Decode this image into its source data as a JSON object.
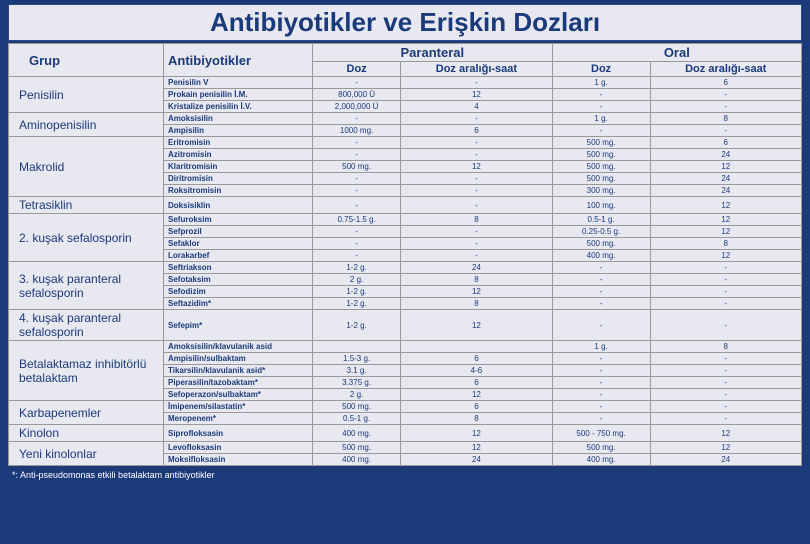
{
  "title": "Antibiyotikler ve Erişkin Dozları",
  "headers": {
    "group": "Grup",
    "antibiotics": "Antibiyotikler",
    "parenteral": "Paranteral",
    "oral": "Oral",
    "dose": "Doz",
    "interval": "Doz aralığı-saat"
  },
  "footnote": "*: Anti-pseudomonas etkili betalaktam antibiyotikler",
  "colors": {
    "background": "#1a3a7a",
    "cell_bg": "#e8e8f0",
    "text": "#1a3a7a",
    "footnote": "#ffffff"
  },
  "groups": [
    {
      "name": "Penisilin",
      "rows": [
        {
          "a": "Penisilin V",
          "pd": "-",
          "pi": "-",
          "od": "1 g.",
          "oi": "6"
        },
        {
          "a": "Prokain penisilin İ.M.",
          "pd": "800,000 Ü",
          "pi": "12",
          "od": "-",
          "oi": "-"
        },
        {
          "a": "Kristalize penisilin İ.V.",
          "pd": "2,000,000 Ü",
          "pi": "4",
          "od": "-",
          "oi": "-"
        }
      ]
    },
    {
      "name": "Aminopenisilin",
      "rows": [
        {
          "a": "Amoksisilin",
          "pd": "-",
          "pi": "-",
          "od": "1 g.",
          "oi": "8"
        },
        {
          "a": "Ampisilin",
          "pd": "1000 mg.",
          "pi": "6",
          "od": "-",
          "oi": "-"
        }
      ]
    },
    {
      "name": "Makrolid",
      "rows": [
        {
          "a": "Eritromisin",
          "pd": "-",
          "pi": "-",
          "od": "500 mg.",
          "oi": "6"
        },
        {
          "a": "Azitromisin",
          "pd": "-",
          "pi": "-",
          "od": "500 mg.",
          "oi": "24"
        },
        {
          "a": "Klaritromisin",
          "pd": "500 mg.",
          "pi": "12",
          "od": "500 mg.",
          "oi": "12"
        },
        {
          "a": "Diritromisin",
          "pd": "-",
          "pi": "-",
          "od": "500 mg.",
          "oi": "24"
        },
        {
          "a": "Roksitromisin",
          "pd": "-",
          "pi": "-",
          "od": "300 mg.",
          "oi": "24"
        }
      ]
    },
    {
      "name": "Tetrasiklin",
      "rows": [
        {
          "a": "Doksisiklin",
          "pd": "-",
          "pi": "-",
          "od": "100 mg.",
          "oi": "12"
        }
      ]
    },
    {
      "name": "2. kuşak sefalosporin",
      "rows": [
        {
          "a": "Sefuroksim",
          "pd": "0.75-1.5 g.",
          "pi": "8",
          "od": "0.5-1 g.",
          "oi": "12"
        },
        {
          "a": "Sefprozil",
          "pd": "-",
          "pi": "-",
          "od": "0.25-0.5 g.",
          "oi": "12"
        },
        {
          "a": "Sefaklor",
          "pd": "-",
          "pi": "-",
          "od": "500 mg.",
          "oi": "8"
        },
        {
          "a": "Lorakarbef",
          "pd": "-",
          "pi": "-",
          "od": "400 mg.",
          "oi": "12"
        }
      ]
    },
    {
      "name": "3. kuşak paranteral sefalosporin",
      "rows": [
        {
          "a": "Seftriakson",
          "pd": "1-2 g.",
          "pi": "24",
          "od": "-",
          "oi": "-"
        },
        {
          "a": "Sefotaksim",
          "pd": "2 g.",
          "pi": "8",
          "od": "-",
          "oi": "-"
        },
        {
          "a": "Sefodizim",
          "pd": "1-2 g.",
          "pi": "12",
          "od": "-",
          "oi": "-"
        },
        {
          "a": "Seftazidim*",
          "pd": "1-2 g.",
          "pi": "8",
          "od": "-",
          "oi": "-"
        }
      ]
    },
    {
      "name": "4. kuşak paranteral sefalosporin",
      "rows": [
        {
          "a": "Sefepim*",
          "pd": "1-2 g.",
          "pi": "12",
          "od": "-",
          "oi": "-"
        }
      ]
    },
    {
      "name": "Betalaktamaz inhibitörlü betalaktam",
      "rows": [
        {
          "a": "Amoksisilin/klavulanik asid",
          "pd": "",
          "pi": "",
          "od": "1 g.",
          "oi": "8"
        },
        {
          "a": "Ampisilin/sulbaktam",
          "pd": "1.5-3 g.",
          "pi": "6",
          "od": "-",
          "oi": "-"
        },
        {
          "a": "Tikarsilin/klavulanik asid*",
          "pd": "3.1 g.",
          "pi": "4-6",
          "od": "-",
          "oi": "-"
        },
        {
          "a": "Piperasilin/tazobaktam*",
          "pd": "3.375 g.",
          "pi": "6",
          "od": "-",
          "oi": "-"
        },
        {
          "a": "Sefoperazon/sulbaktam*",
          "pd": "2 g.",
          "pi": "12",
          "od": "-",
          "oi": "-"
        }
      ]
    },
    {
      "name": "Karbapenemler",
      "rows": [
        {
          "a": "İmipenem/silastatin*",
          "pd": "500 mg.",
          "pi": "6",
          "od": "-",
          "oi": "-"
        },
        {
          "a": "Meropenem*",
          "pd": "0.5-1 g.",
          "pi": "8",
          "od": "-",
          "oi": "-"
        }
      ]
    },
    {
      "name": "Kinolon",
      "rows": [
        {
          "a": "Siprofloksasin",
          "pd": "400 mg.",
          "pi": "12",
          "od": "500 - 750 mg.",
          "oi": "12"
        }
      ]
    },
    {
      "name": "Yeni kinolonlar",
      "rows": [
        {
          "a": "Levofloksasin",
          "pd": "500 mg.",
          "pi": "12",
          "od": "500 mg.",
          "oi": "12"
        },
        {
          "a": "Moksifloksasin",
          "pd": "400 mg.",
          "pi": "24",
          "od": "400 mg.",
          "oi": "24"
        }
      ]
    }
  ]
}
